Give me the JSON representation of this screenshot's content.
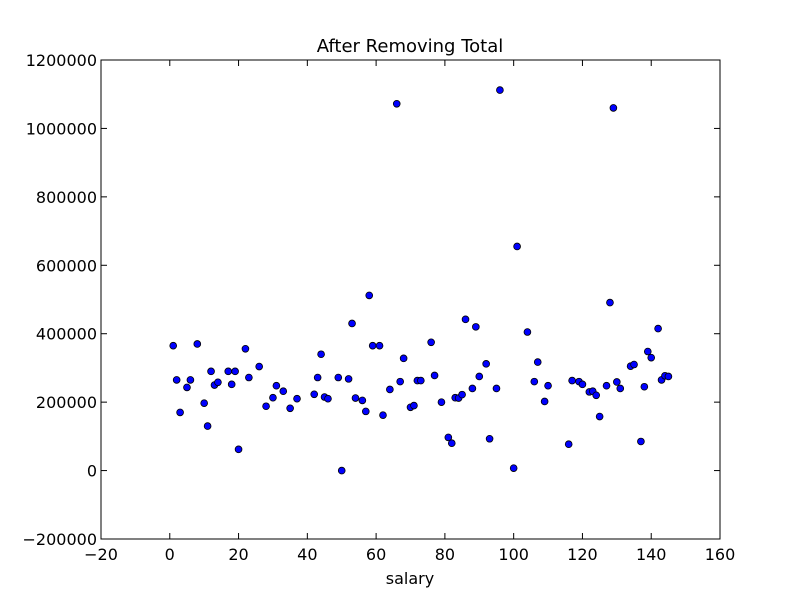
{
  "chart_data": {
    "type": "scatter",
    "title": "After Removing Total",
    "xlabel": "salary",
    "ylabel": "",
    "xlim": [
      -20,
      160
    ],
    "ylim": [
      -200000,
      1200000
    ],
    "xticks": [
      -20,
      0,
      20,
      40,
      60,
      80,
      100,
      120,
      140,
      160
    ],
    "yticks": [
      -200000,
      0,
      200000,
      400000,
      600000,
      800000,
      1000000,
      1200000
    ],
    "grid": false,
    "marker_color": "#0000ff",
    "marker_edge": "#000000",
    "points": [
      [
        1,
        365000
      ],
      [
        2,
        265000
      ],
      [
        3,
        170000
      ],
      [
        5,
        243000
      ],
      [
        6,
        265000
      ],
      [
        8,
        370000
      ],
      [
        10,
        197000
      ],
      [
        11,
        130000
      ],
      [
        12,
        290000
      ],
      [
        13,
        250000
      ],
      [
        14,
        258000
      ],
      [
        17,
        290000
      ],
      [
        18,
        252000
      ],
      [
        19,
        290000
      ],
      [
        20,
        62000
      ],
      [
        22,
        356000
      ],
      [
        23,
        272000
      ],
      [
        26,
        304000
      ],
      [
        28,
        188000
      ],
      [
        30,
        213000
      ],
      [
        31,
        248000
      ],
      [
        33,
        232000
      ],
      [
        35,
        182000
      ],
      [
        37,
        210000
      ],
      [
        42,
        223000
      ],
      [
        43,
        272000
      ],
      [
        44,
        340000
      ],
      [
        45,
        215000
      ],
      [
        46,
        210000
      ],
      [
        49,
        272000
      ],
      [
        50,
        0
      ],
      [
        52,
        268000
      ],
      [
        53,
        430000
      ],
      [
        54,
        212000
      ],
      [
        56,
        205000
      ],
      [
        57,
        173000
      ],
      [
        58,
        512000
      ],
      [
        59,
        365000
      ],
      [
        61,
        365000
      ],
      [
        62,
        162000
      ],
      [
        64,
        237000
      ],
      [
        66,
        1072000
      ],
      [
        67,
        260000
      ],
      [
        68,
        328000
      ],
      [
        70,
        185000
      ],
      [
        71,
        190000
      ],
      [
        72,
        263000
      ],
      [
        73,
        263000
      ],
      [
        76,
        375000
      ],
      [
        77,
        278000
      ],
      [
        79,
        200000
      ],
      [
        81,
        97000
      ],
      [
        82,
        80000
      ],
      [
        83,
        213000
      ],
      [
        84,
        212000
      ],
      [
        85,
        222000
      ],
      [
        86,
        442000
      ],
      [
        88,
        240000
      ],
      [
        89,
        420000
      ],
      [
        90,
        275000
      ],
      [
        92,
        312000
      ],
      [
        93,
        93000
      ],
      [
        95,
        240000
      ],
      [
        96,
        1112000
      ],
      [
        100,
        7000
      ],
      [
        101,
        655000
      ],
      [
        104,
        405000
      ],
      [
        106,
        260000
      ],
      [
        107,
        317000
      ],
      [
        109,
        202000
      ],
      [
        110,
        248000
      ],
      [
        116,
        77000
      ],
      [
        117,
        263000
      ],
      [
        119,
        260000
      ],
      [
        120,
        252000
      ],
      [
        122,
        230000
      ],
      [
        123,
        232000
      ],
      [
        124,
        220000
      ],
      [
        125,
        158000
      ],
      [
        127,
        248000
      ],
      [
        128,
        491000
      ],
      [
        129,
        1060000
      ],
      [
        130,
        259000
      ],
      [
        131,
        240000
      ],
      [
        134,
        305000
      ],
      [
        135,
        310000
      ],
      [
        137,
        85000
      ],
      [
        138,
        245000
      ],
      [
        139,
        348000
      ],
      [
        140,
        330000
      ],
      [
        142,
        415000
      ],
      [
        143,
        265000
      ],
      [
        144,
        277000
      ],
      [
        145,
        275000
      ]
    ]
  }
}
